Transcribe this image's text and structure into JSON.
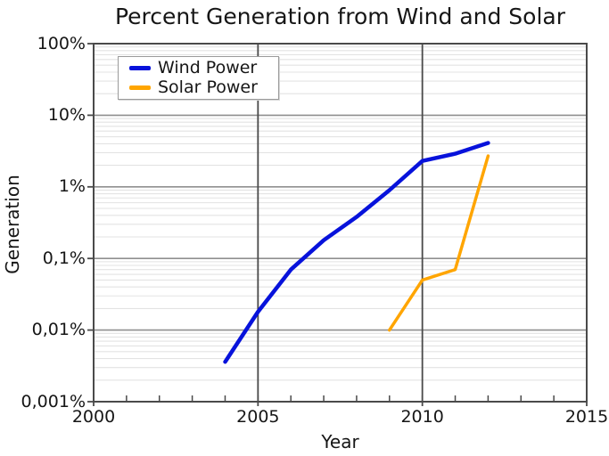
{
  "title": "Percent Generation from Wind and Solar",
  "axes": {
    "xlabel": "Year",
    "ylabel": "Generation"
  },
  "legend": {
    "position": "top-left",
    "items": [
      {
        "label": "Wind Power",
        "color": "#0712db"
      },
      {
        "label": "Solar Power",
        "color": "#ffa500"
      }
    ]
  },
  "chart_data": {
    "type": "line",
    "title": "Percent Generation from Wind and Solar",
    "xlabel": "Year",
    "ylabel": "Generation",
    "x_range": [
      2000,
      2015
    ],
    "y_scale": "log",
    "y_range_percent": [
      0.001,
      100
    ],
    "grid": {
      "border_color": "#4a4a4a",
      "x_major_line_color": "#4a4a4a",
      "y_major_line_color": "#8f8f8f",
      "y_minor_line_color": "#e3e3e3",
      "x_grid_years": [
        2005,
        2010
      ]
    },
    "x_major_ticks": [
      {
        "value": 2000,
        "label": "2000"
      },
      {
        "value": 2005,
        "label": "2005"
      },
      {
        "value": 2010,
        "label": "2010"
      },
      {
        "value": 2015,
        "label": "2015"
      }
    ],
    "x_minor_tick_step_years": 1,
    "y_major_ticks": [
      {
        "value": 100,
        "label": "100%"
      },
      {
        "value": 10,
        "label": "10%"
      },
      {
        "value": 1,
        "label": "1%"
      },
      {
        "value": 0.1,
        "label": "0,1%"
      },
      {
        "value": 0.01,
        "label": "0,01%"
      },
      {
        "value": 0.001,
        "label": "0,001%"
      }
    ],
    "series": [
      {
        "name": "Wind Power",
        "color": "#0712db",
        "line_width": 4.5,
        "points": [
          {
            "x": 2004,
            "y": 0.0036
          },
          {
            "x": 2005,
            "y": 0.018
          },
          {
            "x": 2006,
            "y": 0.07
          },
          {
            "x": 2007,
            "y": 0.18
          },
          {
            "x": 2008,
            "y": 0.38
          },
          {
            "x": 2009,
            "y": 0.9
          },
          {
            "x": 2010,
            "y": 2.3
          },
          {
            "x": 2011,
            "y": 2.9
          },
          {
            "x": 2012,
            "y": 4.1
          }
        ]
      },
      {
        "name": "Solar Power",
        "color": "#ffa500",
        "line_width": 3.5,
        "points": [
          {
            "x": 2009,
            "y": 0.01
          },
          {
            "x": 2010,
            "y": 0.05
          },
          {
            "x": 2011,
            "y": 0.07
          },
          {
            "x": 2012,
            "y": 2.7
          }
        ]
      }
    ],
    "legend_position": "top-left"
  }
}
